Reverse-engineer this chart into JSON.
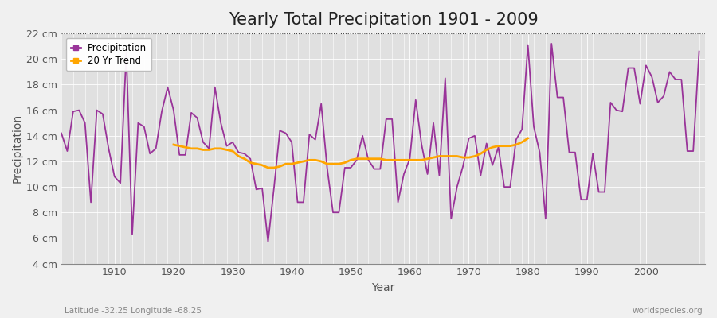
{
  "title": "Yearly Total Precipitation 1901 - 2009",
  "xlabel": "Year",
  "ylabel": "Precipitation",
  "subtitle_left": "Latitude -32.25 Longitude -68.25",
  "subtitle_right": "worldspecies.org",
  "ylim": [
    4,
    22
  ],
  "yticks": [
    4,
    6,
    8,
    10,
    12,
    14,
    16,
    18,
    20,
    22
  ],
  "ytick_labels": [
    "4 cm",
    "6 cm",
    "8 cm",
    "10 cm",
    "12 cm",
    "14 cm",
    "16 cm",
    "18 cm",
    "20 cm",
    "22 cm"
  ],
  "years": [
    1901,
    1902,
    1903,
    1904,
    1905,
    1906,
    1907,
    1908,
    1909,
    1910,
    1911,
    1912,
    1913,
    1914,
    1915,
    1916,
    1917,
    1918,
    1919,
    1920,
    1921,
    1922,
    1923,
    1924,
    1925,
    1926,
    1927,
    1928,
    1929,
    1930,
    1931,
    1932,
    1933,
    1934,
    1935,
    1936,
    1937,
    1938,
    1939,
    1940,
    1941,
    1942,
    1943,
    1944,
    1945,
    1946,
    1947,
    1948,
    1949,
    1950,
    1951,
    1952,
    1953,
    1954,
    1955,
    1956,
    1957,
    1958,
    1959,
    1960,
    1961,
    1962,
    1963,
    1964,
    1965,
    1966,
    1967,
    1968,
    1969,
    1970,
    1971,
    1972,
    1973,
    1974,
    1975,
    1976,
    1977,
    1978,
    1979,
    1980,
    1981,
    1982,
    1983,
    1984,
    1985,
    1986,
    1987,
    1988,
    1989,
    1990,
    1991,
    1992,
    1993,
    1994,
    1995,
    1996,
    1997,
    1998,
    1999,
    2000,
    2001,
    2002,
    2003,
    2004,
    2005,
    2006,
    2007,
    2008,
    2009
  ],
  "precip": [
    14.2,
    12.8,
    15.9,
    16.0,
    15.0,
    8.8,
    16.0,
    15.7,
    13.0,
    10.8,
    10.3,
    20.5,
    6.3,
    15.0,
    14.7,
    12.6,
    13.0,
    15.9,
    17.8,
    16.0,
    12.5,
    12.5,
    15.8,
    15.4,
    13.5,
    13.0,
    17.8,
    15.0,
    13.2,
    13.5,
    12.7,
    12.6,
    12.2,
    9.8,
    9.9,
    5.7,
    9.9,
    14.4,
    14.2,
    13.5,
    8.8,
    8.8,
    14.1,
    13.7,
    16.5,
    11.5,
    8.0,
    8.0,
    11.5,
    11.5,
    12.1,
    14.0,
    12.1,
    11.4,
    11.4,
    15.3,
    15.3,
    8.8,
    11.0,
    12.2,
    16.8,
    13.3,
    11.0,
    15.0,
    10.9,
    18.5,
    7.5,
    10.0,
    11.6,
    13.8,
    14.0,
    10.9,
    13.4,
    11.7,
    13.1,
    10.0,
    10.0,
    13.7,
    14.5,
    21.1,
    14.7,
    12.7,
    7.5,
    21.2,
    17.0,
    17.0,
    12.7,
    12.7,
    9.0,
    9.0,
    12.6,
    9.6,
    9.6,
    16.6,
    16.0,
    15.9,
    19.3,
    19.3,
    16.5,
    19.5,
    18.6,
    16.6,
    17.1,
    19.0,
    18.4,
    18.4,
    12.8,
    12.8,
    20.6
  ],
  "trend_years": [
    1920,
    1921,
    1922,
    1923,
    1924,
    1925,
    1926,
    1927,
    1928,
    1929,
    1930,
    1931,
    1932,
    1933,
    1934,
    1935,
    1936,
    1937,
    1938,
    1939,
    1940,
    1941,
    1942,
    1943,
    1944,
    1945,
    1946,
    1947,
    1948,
    1949,
    1950,
    1951,
    1952,
    1953,
    1954,
    1955,
    1956,
    1957,
    1958,
    1959,
    1960,
    1961,
    1962,
    1963,
    1964,
    1965,
    1966,
    1967,
    1968,
    1969,
    1970,
    1971,
    1972,
    1973,
    1974,
    1975,
    1976,
    1977,
    1978,
    1979,
    1980
  ],
  "trend_values": [
    13.3,
    13.2,
    13.1,
    13.0,
    13.0,
    12.9,
    12.9,
    13.0,
    13.0,
    12.9,
    12.8,
    12.4,
    12.2,
    11.9,
    11.8,
    11.7,
    11.5,
    11.5,
    11.6,
    11.8,
    11.8,
    11.9,
    12.0,
    12.1,
    12.1,
    12.0,
    11.8,
    11.8,
    11.8,
    11.9,
    12.1,
    12.2,
    12.2,
    12.2,
    12.2,
    12.2,
    12.1,
    12.1,
    12.1,
    12.1,
    12.1,
    12.1,
    12.1,
    12.2,
    12.3,
    12.4,
    12.4,
    12.4,
    12.4,
    12.3,
    12.3,
    12.4,
    12.6,
    12.9,
    13.1,
    13.2,
    13.2,
    13.2,
    13.3,
    13.5,
    13.8
  ],
  "precip_color": "#993399",
  "trend_color": "#FFA500",
  "bg_color": "#F0F0F0",
  "plot_bg_color": "#E0E0E0",
  "grid_color": "#FFFFFF",
  "top_dotted_color": "#555555",
  "title_fontsize": 15,
  "axis_fontsize": 10,
  "tick_fontsize": 9
}
